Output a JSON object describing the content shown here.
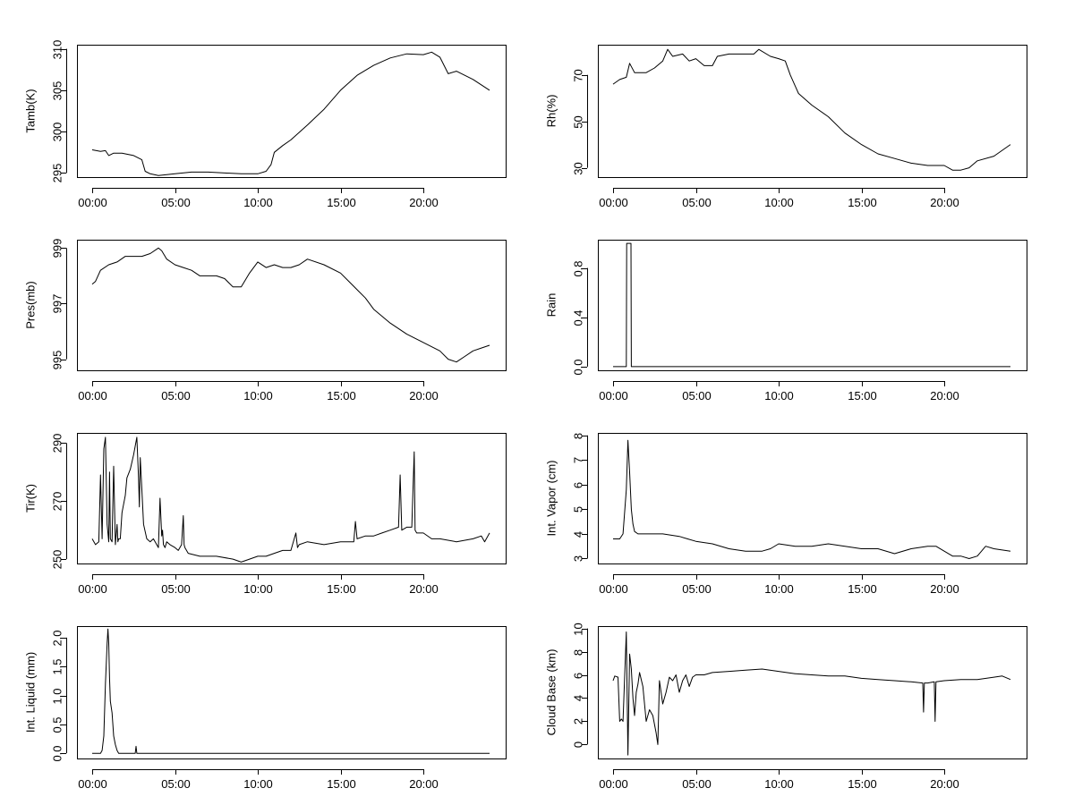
{
  "chart_data": [
    {
      "type": "line",
      "ylabel": "Tamb(K)",
      "xlim": [
        0,
        24
      ],
      "ylim": [
        294.5,
        310.5
      ],
      "x_ticks": [
        0,
        5,
        10,
        15,
        20
      ],
      "x_tick_labels": [
        "00:00",
        "05:00",
        "10:00",
        "15:00",
        "20:00"
      ],
      "y_ticks": [
        295,
        300,
        305,
        310
      ],
      "y_tick_labels": [
        "295",
        "300",
        "305",
        "310"
      ],
      "x": [
        0.0,
        0.5,
        0.8,
        1.0,
        1.3,
        1.8,
        2.5,
        3.0,
        3.2,
        3.5,
        4.0,
        4.5,
        5.0,
        6.0,
        7.0,
        8.0,
        9.0,
        9.5,
        10.0,
        10.5,
        10.8,
        11.0,
        11.5,
        12.0,
        13.0,
        14.0,
        15.0,
        16.0,
        17.0,
        18.0,
        19.0,
        20.0,
        20.5,
        21.0,
        21.5,
        22.0,
        23.0,
        24.0
      ],
      "y": [
        297.8,
        297.6,
        297.7,
        297.1,
        297.4,
        297.4,
        297.1,
        296.6,
        295.2,
        294.9,
        294.7,
        294.8,
        294.9,
        295.1,
        295.1,
        295.0,
        294.9,
        294.9,
        294.9,
        295.2,
        296.0,
        297.5,
        298.3,
        299.0,
        300.8,
        302.7,
        305.0,
        306.8,
        308.0,
        308.9,
        309.4,
        309.3,
        309.6,
        309.0,
        307.0,
        307.3,
        306.3,
        305.0
      ]
    },
    {
      "type": "line",
      "ylabel": "Rh(%)",
      "xlim": [
        0,
        24
      ],
      "ylim": [
        26,
        83
      ],
      "x_ticks": [
        0,
        5,
        10,
        15,
        20
      ],
      "x_tick_labels": [
        "00:00",
        "05:00",
        "10:00",
        "15:00",
        "20:00"
      ],
      "y_ticks": [
        30,
        50,
        70
      ],
      "y_tick_labels": [
        "30",
        "50",
        "70"
      ],
      "x": [
        0.0,
        0.4,
        0.8,
        1.0,
        1.3,
        2.0,
        2.5,
        3.0,
        3.3,
        3.6,
        4.2,
        4.6,
        5.0,
        5.5,
        6.0,
        6.3,
        7.0,
        8.0,
        8.5,
        8.8,
        9.5,
        10.0,
        10.4,
        10.7,
        11.2,
        12.0,
        13.0,
        14.0,
        15.0,
        16.0,
        17.0,
        18.0,
        19.0,
        20.0,
        20.5,
        21.0,
        21.5,
        22.0,
        23.0,
        24.0
      ],
      "y": [
        66,
        68,
        69,
        75,
        71,
        71,
        73,
        76,
        81,
        78,
        79,
        76,
        77,
        74,
        74,
        78,
        79,
        79,
        79,
        81,
        78,
        77,
        76,
        70,
        62,
        57,
        52,
        45,
        40,
        36,
        34,
        32,
        31,
        31,
        29,
        29,
        30,
        33,
        35,
        40
      ]
    },
    {
      "type": "line",
      "ylabel": "Pres(mb)",
      "xlim": [
        0,
        24
      ],
      "ylim": [
        994.6,
        999.3
      ],
      "x_ticks": [
        0,
        5,
        10,
        15,
        20
      ],
      "x_tick_labels": [
        "00:00",
        "05:00",
        "10:00",
        "15:00",
        "20:00"
      ],
      "y_ticks": [
        995,
        997,
        999
      ],
      "y_tick_labels": [
        "995",
        "997",
        "999"
      ],
      "x": [
        0.0,
        0.2,
        0.5,
        1.0,
        1.5,
        2.0,
        2.5,
        3.0,
        3.5,
        4.0,
        4.2,
        4.5,
        5.0,
        5.5,
        6.0,
        6.5,
        7.0,
        7.5,
        8.0,
        8.5,
        8.8,
        9.0,
        9.2,
        9.5,
        10.0,
        10.5,
        11.0,
        11.5,
        12.0,
        12.5,
        13.0,
        14.0,
        15.0,
        15.5,
        16.0,
        16.5,
        17.0,
        18.0,
        19.0,
        20.0,
        21.0,
        21.5,
        22.0,
        22.5,
        23.0,
        23.5,
        24.0
      ],
      "y": [
        997.7,
        997.8,
        998.2,
        998.4,
        998.5,
        998.7,
        998.7,
        998.7,
        998.8,
        999.0,
        998.9,
        998.6,
        998.4,
        998.3,
        998.2,
        998.0,
        998.0,
        998.0,
        997.9,
        997.6,
        997.6,
        997.6,
        997.8,
        998.1,
        998.5,
        998.3,
        998.4,
        998.3,
        998.3,
        998.4,
        998.6,
        998.4,
        998.1,
        997.8,
        997.5,
        997.2,
        996.8,
        996.3,
        995.9,
        995.6,
        995.3,
        995.0,
        994.9,
        995.1,
        995.3,
        995.4,
        995.5
      ]
    },
    {
      "type": "line",
      "ylabel": "Rain",
      "xlim": [
        0,
        24
      ],
      "ylim": [
        -0.03,
        1.03
      ],
      "x_ticks": [
        0,
        5,
        10,
        15,
        20
      ],
      "x_tick_labels": [
        "00:00",
        "05:00",
        "10:00",
        "15:00",
        "20:00"
      ],
      "y_ticks": [
        0.0,
        0.4,
        0.8
      ],
      "y_tick_labels": [
        "0.0",
        "0.4",
        "0.8"
      ],
      "x": [
        0.0,
        0.8,
        0.82,
        1.08,
        1.1,
        24.0
      ],
      "y": [
        0,
        0,
        1,
        1,
        0,
        0
      ]
    },
    {
      "type": "line",
      "ylabel": "Tir(K)",
      "xlim": [
        0,
        24
      ],
      "ylim": [
        248.5,
        293.5
      ],
      "x_ticks": [
        0,
        5,
        10,
        15,
        20
      ],
      "x_tick_labels": [
        "00:00",
        "05:00",
        "10:00",
        "15:00",
        "20:00"
      ],
      "y_ticks": [
        250,
        270,
        290
      ],
      "y_tick_labels": [
        "250",
        "270",
        "290"
      ],
      "x": [
        0.0,
        0.2,
        0.4,
        0.5,
        0.6,
        0.7,
        0.8,
        0.9,
        1.0,
        1.05,
        1.1,
        1.2,
        1.3,
        1.4,
        1.5,
        1.55,
        1.6,
        1.7,
        1.8,
        2.0,
        2.1,
        2.3,
        2.5,
        2.7,
        2.8,
        2.85,
        2.9,
        3.0,
        3.1,
        3.3,
        3.5,
        3.7,
        4.0,
        4.1,
        4.2,
        4.25,
        4.3,
        4.4,
        4.5,
        4.7,
        5.0,
        5.2,
        5.4,
        5.5,
        5.55,
        5.6,
        5.8,
        6.5,
        7.5,
        8.5,
        9.0,
        9.5,
        10.0,
        10.5,
        11.0,
        11.5,
        12.0,
        12.3,
        12.4,
        12.5,
        13.0,
        14.0,
        15.0,
        15.5,
        15.8,
        15.9,
        16.0,
        16.5,
        17.0,
        17.5,
        18.0,
        18.5,
        18.6,
        18.7,
        19.0,
        19.3,
        19.45,
        19.5,
        19.6,
        20.0,
        20.5,
        21.0,
        22.0,
        23.0,
        23.5,
        23.7,
        24.0
      ],
      "y": [
        257,
        255,
        256,
        279,
        257,
        288,
        292,
        262,
        256,
        280,
        257,
        256,
        282,
        255,
        262,
        256,
        257,
        257,
        266,
        272,
        278,
        281,
        286,
        292,
        278,
        268,
        285,
        274,
        262,
        257,
        256,
        257,
        254,
        271,
        258,
        260,
        255,
        254,
        256,
        255,
        254,
        253,
        255,
        265,
        255,
        254,
        252,
        251,
        251,
        250,
        249,
        250,
        251,
        251,
        252,
        253,
        253,
        259,
        254,
        255,
        256,
        255,
        256,
        256,
        256,
        263,
        257,
        258,
        258,
        259,
        260,
        261,
        279,
        260,
        261,
        261,
        287,
        260,
        259,
        259,
        257,
        257,
        256,
        257,
        258,
        256,
        259
      ]
    },
    {
      "type": "line",
      "ylabel": "Int. Vapor (cm)",
      "xlim": [
        0,
        24
      ],
      "ylim": [
        2.8,
        8.1
      ],
      "x_ticks": [
        0,
        5,
        10,
        15,
        20
      ],
      "x_tick_labels": [
        "00:00",
        "05:00",
        "10:00",
        "15:00",
        "20:00"
      ],
      "y_ticks": [
        3,
        4,
        5,
        6,
        7,
        8
      ],
      "y_tick_labels": [
        "3",
        "4",
        "5",
        "6",
        "7",
        "8"
      ],
      "x": [
        0.0,
        0.4,
        0.6,
        0.8,
        0.9,
        1.0,
        1.1,
        1.2,
        1.3,
        1.5,
        2.0,
        3.0,
        4.0,
        4.5,
        5.0,
        6.0,
        7.0,
        8.0,
        9.0,
        9.5,
        10.0,
        11.0,
        12.0,
        13.0,
        14.0,
        15.0,
        16.0,
        17.0,
        18.0,
        19.0,
        19.5,
        20.0,
        20.5,
        21.0,
        21.5,
        22.0,
        22.5,
        23.0,
        24.0
      ],
      "y": [
        3.8,
        3.8,
        4.0,
        5.8,
        7.8,
        6.5,
        5.0,
        4.4,
        4.1,
        4.0,
        4.0,
        4.0,
        3.9,
        3.8,
        3.7,
        3.6,
        3.4,
        3.3,
        3.3,
        3.4,
        3.6,
        3.5,
        3.5,
        3.6,
        3.5,
        3.4,
        3.4,
        3.2,
        3.4,
        3.5,
        3.5,
        3.3,
        3.1,
        3.1,
        3.0,
        3.1,
        3.5,
        3.4,
        3.3
      ]
    },
    {
      "type": "line",
      "ylabel": "Int. Liquid (mm)",
      "xlim": [
        0,
        24
      ],
      "ylim": [
        -0.09,
        2.2
      ],
      "x_ticks": [
        0,
        5,
        10,
        15,
        20
      ],
      "x_tick_labels": [
        "00:00",
        "05:00",
        "10:00",
        "15:00",
        "20:00"
      ],
      "y_ticks": [
        0.0,
        0.5,
        1.0,
        1.5,
        2.0
      ],
      "y_tick_labels": [
        "0.0",
        "0.5",
        "1.0",
        "1.5",
        "2.0"
      ],
      "x": [
        0.0,
        0.5,
        0.6,
        0.7,
        0.8,
        0.9,
        0.95,
        1.0,
        1.05,
        1.1,
        1.2,
        1.3,
        1.4,
        1.5,
        1.6,
        2.0,
        2.6,
        2.65,
        2.7,
        3.0,
        24.0
      ],
      "y": [
        0.0,
        0.0,
        0.05,
        0.3,
        1.2,
        1.9,
        2.15,
        1.9,
        1.3,
        0.9,
        0.7,
        0.3,
        0.15,
        0.05,
        0.0,
        0.0,
        0.0,
        0.12,
        0.0,
        0.0,
        0.0
      ]
    },
    {
      "type": "line",
      "ylabel": "Cloud Base (km)",
      "xlim": [
        0,
        24
      ],
      "ylim": [
        -1.2,
        10.2
      ],
      "x_ticks": [
        0,
        5,
        10,
        15,
        20
      ],
      "x_tick_labels": [
        "00:00",
        "05:00",
        "10:00",
        "15:00",
        "20:00"
      ],
      "y_ticks": [
        0,
        2,
        4,
        6,
        8,
        10
      ],
      "y_tick_labels": [
        "0",
        "2",
        "4",
        "6",
        "8",
        "10"
      ],
      "x": [
        0.0,
        0.1,
        0.3,
        0.4,
        0.5,
        0.6,
        0.7,
        0.8,
        0.9,
        1.0,
        1.1,
        1.2,
        1.3,
        1.4,
        1.5,
        1.6,
        1.8,
        2.0,
        2.2,
        2.4,
        2.6,
        2.7,
        2.8,
        3.0,
        3.2,
        3.4,
        3.6,
        3.8,
        4.0,
        4.2,
        4.4,
        4.6,
        4.8,
        5.0,
        5.5,
        6.0,
        7.0,
        8.0,
        9.0,
        10.0,
        11.0,
        12.0,
        13.0,
        14.0,
        15.0,
        16.0,
        17.0,
        18.0,
        18.7,
        18.75,
        18.8,
        19.0,
        19.4,
        19.45,
        19.5,
        20.0,
        21.0,
        22.0,
        23.0,
        23.5,
        24.0
      ],
      "y": [
        5.5,
        5.9,
        5.8,
        2.0,
        2.2,
        2.0,
        6.0,
        9.7,
        -0.9,
        7.8,
        6.5,
        4.0,
        2.5,
        4.5,
        5.2,
        6.2,
        5.0,
        2.0,
        3.0,
        2.5,
        1.0,
        0.0,
        5.5,
        3.5,
        4.5,
        5.8,
        5.5,
        6.0,
        4.5,
        5.5,
        6.0,
        5.0,
        5.8,
        6.0,
        6.0,
        6.2,
        6.3,
        6.4,
        6.5,
        6.3,
        6.1,
        6.0,
        5.9,
        5.9,
        5.7,
        5.6,
        5.5,
        5.4,
        5.3,
        2.8,
        5.3,
        5.3,
        5.4,
        2.0,
        5.4,
        5.5,
        5.6,
        5.6,
        5.8,
        5.9,
        5.6
      ]
    }
  ]
}
